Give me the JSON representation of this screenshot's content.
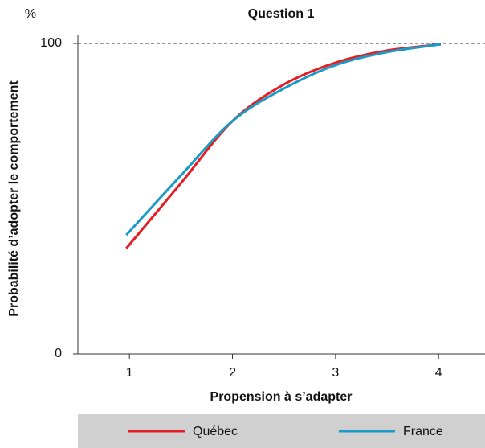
{
  "chart_data": {
    "type": "line",
    "title": "Question 1",
    "y_unit": "%",
    "x_label": "Propension à s’adapter",
    "y_label": "Probabilité d’adopter le comportement",
    "x": [
      0.97,
      1.5,
      2,
      2.5,
      3,
      3.5,
      4.02
    ],
    "series": [
      {
        "name": "Québec",
        "color": "#e31e24",
        "values": [
          34,
          55,
          75,
          86.8,
          93.8,
          97.7,
          99.7
        ]
      },
      {
        "name": "France",
        "color": "#1a9bc7",
        "values": [
          38.3,
          57.5,
          75,
          85.5,
          93,
          97.2,
          99.7
        ]
      }
    ],
    "xlim": [
      0.5,
      4.45
    ],
    "ylim": [
      0,
      100
    ],
    "xticks": [
      1,
      2,
      3,
      4
    ],
    "yticks": [
      0,
      100
    ]
  }
}
